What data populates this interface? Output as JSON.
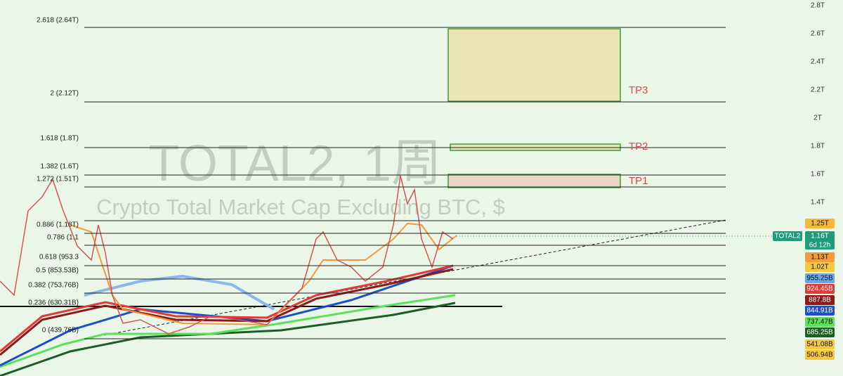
{
  "watermark": {
    "title": "TOTAL2, 1周",
    "subtitle": "Crypto Total Market Cap Excluding BTC, $"
  },
  "fib_levels": [
    "2.618 (2.64T)",
    "2 (2.12T)",
    "1.618 (1.8T)",
    "1.382 (1.6T)",
    "1.272 (1.51T)",
    "0.886 (1.18T)",
    "0.786 (1.1",
    "0.618 (953.3",
    "0.5 (853.53B)",
    "0.382 (753.76B)",
    "0.236 (630.31B)",
    "0 (439.76B)"
  ],
  "targets": [
    "TP3",
    "TP2",
    "TP1"
  ],
  "price_axis": [
    "2.8T",
    "2.6T",
    "2.4T",
    "2.2T",
    "2T",
    "1.8T",
    "1.6T",
    "1.4T"
  ],
  "symbol_badge": {
    "symbol": "TOTAL2",
    "price": "1.16T",
    "countdown": "6d 12h",
    "color": "#1e9c7c"
  },
  "badges": [
    {
      "text": "1.25T",
      "color": "#f5b93a"
    },
    {
      "text": "1.13T",
      "color": "#f59a3a"
    },
    {
      "text": "1.02T",
      "color": "#f5c842"
    },
    {
      "text": "955.25B",
      "color": "#6aa6e8"
    },
    {
      "text": "924.45B",
      "color": "#e53935"
    },
    {
      "text": "887.8B",
      "color": "#8b1a1a"
    },
    {
      "text": "844.91B",
      "color": "#1f4fc8"
    },
    {
      "text": "737.47B",
      "color": "#5de05a"
    },
    {
      "text": "685.25B",
      "color": "#1d5e24"
    },
    {
      "text": "541.08B",
      "color": "#f5c842"
    },
    {
      "text": "506.94B",
      "color": "#f5c842"
    }
  ]
}
